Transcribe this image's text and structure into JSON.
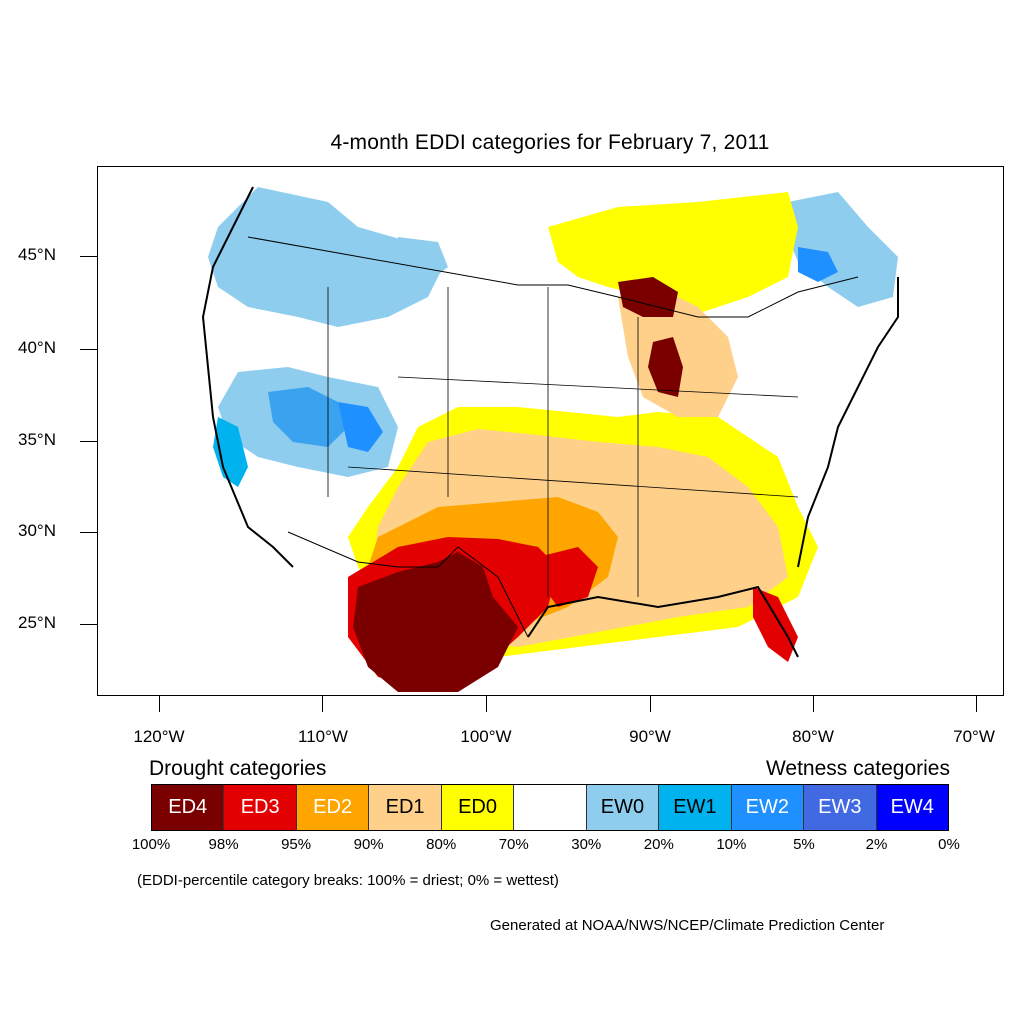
{
  "title": "4-month EDDI categories for February 7, 2011",
  "latitude_labels": [
    {
      "text": "45°N",
      "lat": 45
    },
    {
      "text": "40°N",
      "lat": 40
    },
    {
      "text": "35°N",
      "lat": 35
    },
    {
      "text": "30°N",
      "lat": 30
    },
    {
      "text": "25°N",
      "lat": 25
    }
  ],
  "longitude_labels": [
    {
      "text": "120°W",
      "lon": -120
    },
    {
      "text": "110°W",
      "lon": -110
    },
    {
      "text": "100°W",
      "lon": -100
    },
    {
      "text": "90°W",
      "lon": -90
    },
    {
      "text": "80°W",
      "lon": -80
    },
    {
      "text": "70°W",
      "lon": -70
    }
  ],
  "legend": {
    "drought_heading": "Drought categories",
    "wetness_heading": "Wetness categories",
    "categories": [
      {
        "label": "ED4",
        "color": "#7a0000",
        "text_color": "#ffffff"
      },
      {
        "label": "ED3",
        "color": "#e30000",
        "text_color": "#ffffff"
      },
      {
        "label": "ED2",
        "color": "#ffa500",
        "text_color": "#ffffff"
      },
      {
        "label": "ED1",
        "color": "#fed08a",
        "text_color": "#000000"
      },
      {
        "label": "ED0",
        "color": "#ffff00",
        "text_color": "#000000"
      },
      {
        "label": "",
        "color": "#ffffff",
        "text_color": "#000000"
      },
      {
        "label": "EW0",
        "color": "#8fcdef",
        "text_color": "#000000"
      },
      {
        "label": "EW1",
        "color": "#00b2ee",
        "text_color": "#000000"
      },
      {
        "label": "EW2",
        "color": "#1e90ff",
        "text_color": "#ffffff"
      },
      {
        "label": "EW3",
        "color": "#4169e1",
        "text_color": "#ffffff"
      },
      {
        "label": "EW4",
        "color": "#0000ff",
        "text_color": "#ffffff"
      }
    ],
    "percent_breaks": [
      "100%",
      "98%",
      "95%",
      "90%",
      "80%",
      "70%",
      "30%",
      "20%",
      "10%",
      "5%",
      "2%",
      "0%"
    ]
  },
  "note": "(EDDI-percentile category breaks: 100% = driest; 0% = wettest)",
  "credit": "Generated at NOAA/NWS/NCEP/Climate Prediction Center"
}
